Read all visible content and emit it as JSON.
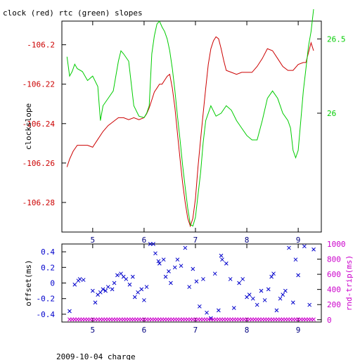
{
  "chart_data": [
    {
      "type": "line",
      "title": "clock (red) rtc (green) slopes",
      "xticks": [
        5,
        6,
        7,
        8,
        9
      ],
      "xlim": [
        4.4,
        9.45
      ],
      "left_axis": {
        "label": "clockslope",
        "ylim": [
          -106.295,
          -106.188
        ],
        "ticks": [
          -106.2,
          -106.22,
          -106.24,
          -106.26,
          -106.28
        ],
        "tick_labels": [
          "-106.2",
          "-106.22",
          "-106.24",
          "-106.26",
          "-106.28"
        ],
        "color": "#cc0000"
      },
      "right_axis": {
        "label": "",
        "ylim": [
          25.2,
          26.62
        ],
        "ticks": [
          26,
          26.5
        ],
        "tick_labels": [
          "26",
          "26.5"
        ],
        "color": "#00cc00"
      },
      "series": [
        {
          "name": "clock",
          "color": "#cc0000",
          "axis": "left",
          "x": [
            4.5,
            4.55,
            4.62,
            4.7,
            4.8,
            4.9,
            5.0,
            5.1,
            5.2,
            5.3,
            5.4,
            5.5,
            5.6,
            5.7,
            5.8,
            5.9,
            6.0,
            6.05,
            6.1,
            6.15,
            6.2,
            6.25,
            6.3,
            6.35,
            6.4,
            6.45,
            6.5,
            6.55,
            6.6,
            6.65,
            6.7,
            6.75,
            6.8,
            6.85,
            6.9,
            6.95,
            7.0,
            7.05,
            7.1,
            7.15,
            7.2,
            7.25,
            7.3,
            7.35,
            7.4,
            7.45,
            7.5,
            7.55,
            7.6,
            7.7,
            7.8,
            7.9,
            8.0,
            8.1,
            8.2,
            8.3,
            8.4,
            8.5,
            8.6,
            8.7,
            8.8,
            8.9,
            9.0,
            9.1,
            9.15,
            9.2,
            9.25,
            9.3
          ],
          "y": [
            -106.262,
            -106.258,
            -106.254,
            -106.251,
            -106.251,
            -106.251,
            -106.252,
            -106.248,
            -106.244,
            -106.241,
            -106.239,
            -106.237,
            -106.237,
            -106.238,
            -106.237,
            -106.238,
            -106.237,
            -106.235,
            -106.232,
            -106.228,
            -106.224,
            -106.222,
            -106.22,
            -106.22,
            -106.218,
            -106.216,
            -106.215,
            -106.222,
            -106.232,
            -106.245,
            -106.258,
            -106.27,
            -106.28,
            -106.288,
            -106.292,
            -106.288,
            -106.278,
            -106.262,
            -106.248,
            -106.235,
            -106.222,
            -106.21,
            -106.202,
            -106.198,
            -106.196,
            -106.197,
            -106.202,
            -106.208,
            -106.213,
            -106.214,
            -106.215,
            -106.214,
            -106.214,
            -106.214,
            -106.211,
            -106.207,
            -106.202,
            -106.203,
            -106.207,
            -106.211,
            -106.213,
            -106.213,
            -106.21,
            -106.209,
            -106.209,
            -106.204,
            -106.199,
            -106.203
          ]
        },
        {
          "name": "rtc",
          "color": "#00cc00",
          "axis": "right",
          "x": [
            4.5,
            4.55,
            4.6,
            4.65,
            4.7,
            4.8,
            4.9,
            5.0,
            5.1,
            5.15,
            5.2,
            5.3,
            5.4,
            5.5,
            5.55,
            5.6,
            5.7,
            5.8,
            5.9,
            6.0,
            6.05,
            6.1,
            6.15,
            6.2,
            6.25,
            6.3,
            6.35,
            6.4,
            6.45,
            6.5,
            6.55,
            6.6,
            6.65,
            6.7,
            6.75,
            6.8,
            6.85,
            6.9,
            6.95,
            7.0,
            7.05,
            7.1,
            7.15,
            7.2,
            7.3,
            7.4,
            7.5,
            7.6,
            7.7,
            7.8,
            7.9,
            8.0,
            8.1,
            8.2,
            8.3,
            8.4,
            8.5,
            8.6,
            8.7,
            8.8,
            8.85,
            8.9,
            8.95,
            9.0,
            9.05,
            9.1,
            9.15,
            9.2,
            9.25,
            9.3
          ],
          "y": [
            26.38,
            26.25,
            26.28,
            26.33,
            26.3,
            26.28,
            26.22,
            26.25,
            26.18,
            25.95,
            26.05,
            26.1,
            26.15,
            26.35,
            26.42,
            26.4,
            26.35,
            26.05,
            25.98,
            25.97,
            26.0,
            26.05,
            26.4,
            26.52,
            26.6,
            26.62,
            26.58,
            26.55,
            26.5,
            26.42,
            26.3,
            26.15,
            25.98,
            25.82,
            25.65,
            25.5,
            25.36,
            25.25,
            25.24,
            25.3,
            25.45,
            25.6,
            25.8,
            25.95,
            26.05,
            25.98,
            26.0,
            26.05,
            26.02,
            25.95,
            25.9,
            25.85,
            25.82,
            25.82,
            25.95,
            26.1,
            26.15,
            26.1,
            26.0,
            25.95,
            25.9,
            25.75,
            25.7,
            25.75,
            25.95,
            26.15,
            26.3,
            26.45,
            26.55,
            26.7
          ]
        }
      ]
    },
    {
      "type": "scatter",
      "title": "",
      "xticks": [
        5,
        6,
        7,
        8,
        9
      ],
      "xlim": [
        4.4,
        9.45
      ],
      "xlabel": "2009-10-04 charge",
      "left_axis": {
        "label": "offset(ms)",
        "ylim": [
          -0.5,
          0.5
        ],
        "ticks": [
          0.4,
          0.2,
          0,
          -0.2,
          -0.4
        ],
        "tick_labels": [
          "0.4",
          "0.2",
          "0",
          "-0.2",
          "-0.4"
        ],
        "color": "#0000cc"
      },
      "right_axis": {
        "label": "rnd-trip(ms)",
        "ylim": [
          -30,
          1000
        ],
        "ticks": [
          1000,
          800,
          600,
          400,
          200,
          0
        ],
        "tick_labels": [
          "1000",
          "800",
          "600",
          "400",
          "200",
          "0"
        ],
        "color": "#cc00cc"
      },
      "series": [
        {
          "name": "offset",
          "color": "#0000cc",
          "axis": "left",
          "marker": "x",
          "x": [
            4.55,
            4.65,
            4.72,
            4.75,
            4.82,
            5.0,
            5.05,
            5.1,
            5.15,
            5.2,
            5.25,
            5.3,
            5.38,
            5.42,
            5.48,
            5.55,
            5.6,
            5.65,
            5.72,
            5.78,
            5.82,
            5.88,
            5.95,
            6.0,
            6.05,
            6.12,
            6.18,
            6.22,
            6.28,
            6.3,
            6.38,
            6.42,
            6.48,
            6.52,
            6.6,
            6.65,
            6.72,
            6.8,
            6.88,
            6.95,
            7.02,
            7.08,
            7.15,
            7.22,
            7.3,
            7.38,
            7.45,
            7.5,
            7.52,
            7.6,
            7.68,
            7.75,
            7.85,
            7.92,
            8.0,
            8.05,
            8.12,
            8.2,
            8.28,
            8.35,
            8.42,
            8.48,
            8.52,
            8.58,
            8.65,
            8.7,
            8.75,
            8.82,
            8.9,
            8.95,
            9.0,
            9.12,
            9.22,
            9.3
          ],
          "y": [
            -0.36,
            -0.02,
            0.03,
            0.05,
            0.04,
            -0.1,
            -0.25,
            -0.15,
            -0.12,
            -0.08,
            -0.1,
            -0.05,
            -0.08,
            0.0,
            0.1,
            0.12,
            0.08,
            0.05,
            -0.02,
            0.08,
            -0.18,
            -0.12,
            -0.08,
            -0.22,
            -0.05,
            0.5,
            0.5,
            0.38,
            0.28,
            0.25,
            0.3,
            0.08,
            0.15,
            0.0,
            0.2,
            0.3,
            0.22,
            0.45,
            -0.05,
            0.18,
            0.02,
            -0.3,
            0.05,
            -0.38,
            -0.45,
            0.12,
            -0.35,
            0.35,
            0.3,
            0.25,
            0.05,
            -0.32,
            0.0,
            0.05,
            -0.18,
            -0.15,
            -0.2,
            -0.28,
            -0.1,
            -0.22,
            -0.08,
            0.08,
            0.12,
            -0.35,
            -0.2,
            -0.15,
            -0.1,
            0.45,
            -0.25,
            0.3,
            0.1,
            0.47,
            -0.28,
            0.43
          ]
        },
        {
          "name": "rnd-trip",
          "color": "#cc00cc",
          "axis": "right",
          "marker": "x",
          "x": [
            4.55,
            4.6,
            4.65,
            4.7,
            4.75,
            4.8,
            4.85,
            4.9,
            4.95,
            5.0,
            5.05,
            5.1,
            5.15,
            5.2,
            5.25,
            5.3,
            5.35,
            5.4,
            5.45,
            5.5,
            5.55,
            5.6,
            5.65,
            5.7,
            5.75,
            5.8,
            5.85,
            5.9,
            5.95,
            6.0,
            6.05,
            6.1,
            6.15,
            6.2,
            6.25,
            6.3,
            6.35,
            6.4,
            6.45,
            6.5,
            6.55,
            6.6,
            6.65,
            6.7,
            6.75,
            6.8,
            6.85,
            6.9,
            6.95,
            7.0,
            7.05,
            7.1,
            7.15,
            7.2,
            7.25,
            7.3,
            7.35,
            7.4,
            7.45,
            7.5,
            7.55,
            7.6,
            7.65,
            7.7,
            7.75,
            7.8,
            7.85,
            7.9,
            7.95,
            8.0,
            8.05,
            8.1,
            8.15,
            8.2,
            8.25,
            8.3,
            8.35,
            8.4,
            8.45,
            8.5,
            8.55,
            8.6,
            8.65,
            8.7,
            8.75,
            8.8,
            8.85,
            8.9,
            8.95,
            9.0,
            9.05,
            9.1,
            9.15,
            9.2,
            9.25,
            9.3
          ],
          "y": [
            5,
            5,
            5,
            5,
            5,
            5,
            5,
            5,
            5,
            5,
            5,
            5,
            5,
            5,
            5,
            5,
            5,
            5,
            5,
            5,
            5,
            5,
            5,
            5,
            5,
            5,
            5,
            5,
            5,
            5,
            5,
            5,
            5,
            5,
            5,
            5,
            5,
            5,
            5,
            5,
            5,
            5,
            5,
            5,
            5,
            5,
            5,
            5,
            5,
            5,
            5,
            5,
            5,
            5,
            5,
            5,
            5,
            5,
            5,
            5,
            5,
            5,
            5,
            5,
            5,
            5,
            5,
            5,
            5,
            5,
            5,
            5,
            5,
            5,
            5,
            5,
            5,
            5,
            5,
            5,
            5,
            5,
            5,
            5,
            5,
            5,
            5,
            5,
            5,
            5,
            5,
            5,
            5,
            5,
            5,
            5
          ]
        }
      ]
    }
  ]
}
